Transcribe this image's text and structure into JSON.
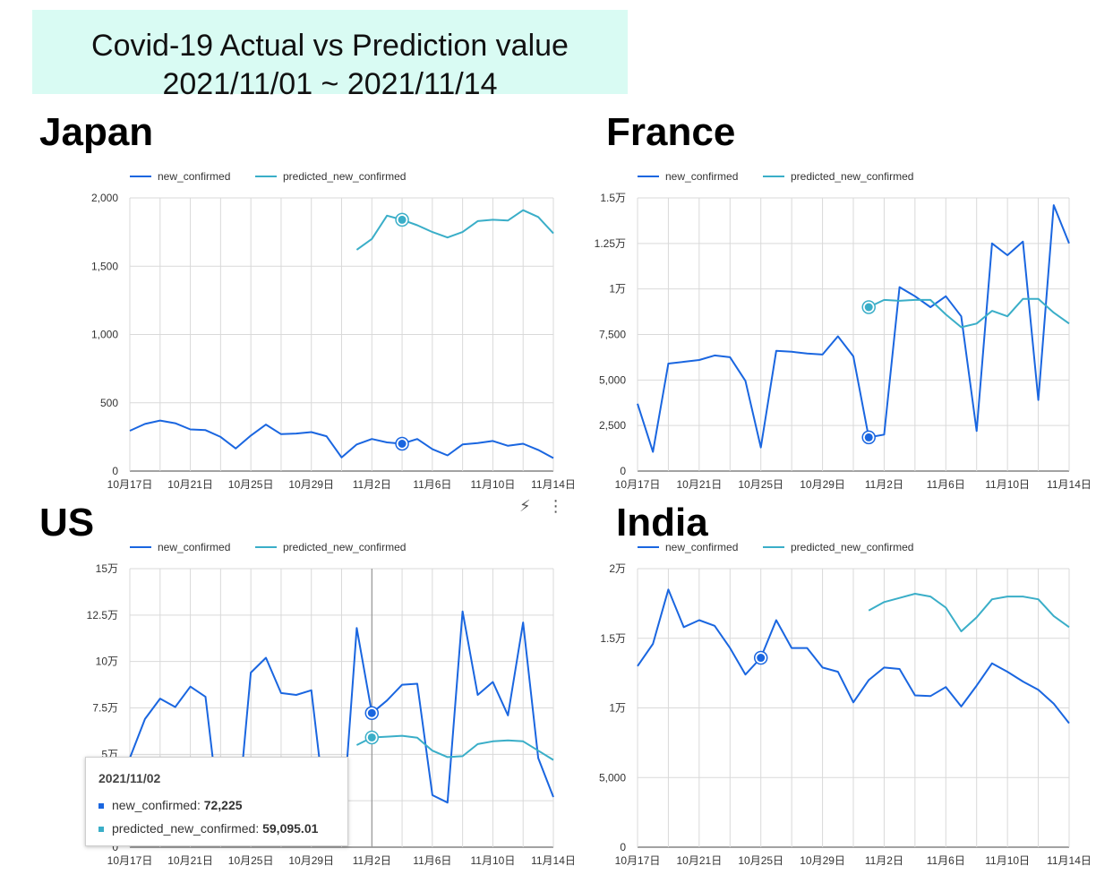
{
  "title": {
    "line1": "Covid-19 Actual vs Prediction value",
    "line2": "2021/11/01 ~ 2021/11/14"
  },
  "colors": {
    "actual": "#1a66e0",
    "predicted": "#3aaec8",
    "grid": "#d9d9d9"
  },
  "legend": {
    "actual": "new_confirmed",
    "predicted": "predicted_new_confirmed"
  },
  "x_ticks": [
    "10月17日",
    "10月21日",
    "10月25日",
    "10月29日",
    "11月2日",
    "11月6日",
    "11月10日",
    "11月14日"
  ],
  "tooltip": {
    "date": "2021/11/02",
    "actual_label": "new_confirmed:",
    "actual_value": "72,225",
    "predicted_label": "predicted_new_confirmed:",
    "predicted_value": "59,095.01"
  },
  "toolbar": {
    "icons": [
      "lightning-icon",
      "more-vert-icon"
    ]
  },
  "chart_data": [
    {
      "type": "line",
      "title": "Japan",
      "x": [
        "2021-10-17",
        "2021-10-18",
        "2021-10-19",
        "2021-10-20",
        "2021-10-21",
        "2021-10-22",
        "2021-10-23",
        "2021-10-24",
        "2021-10-25",
        "2021-10-26",
        "2021-10-27",
        "2021-10-28",
        "2021-10-29",
        "2021-10-30",
        "2021-10-31",
        "2021-11-01",
        "2021-11-02",
        "2021-11-03",
        "2021-11-04",
        "2021-11-05",
        "2021-11-06",
        "2021-11-07",
        "2021-11-08",
        "2021-11-09",
        "2021-11-10",
        "2021-11-11",
        "2021-11-12",
        "2021-11-13",
        "2021-11-14"
      ],
      "ylim": [
        0,
        2000
      ],
      "y_ticks": [
        "0",
        "500",
        "1,000",
        "1,500",
        "2,000"
      ],
      "series": [
        {
          "name": "new_confirmed",
          "values": [
            295,
            345,
            370,
            350,
            305,
            300,
            250,
            165,
            260,
            340,
            270,
            275,
            285,
            255,
            100,
            195,
            235,
            210,
            200,
            235,
            160,
            115,
            195,
            205,
            220,
            185,
            200,
            155,
            95
          ]
        },
        {
          "name": "predicted_new_confirmed",
          "values": [
            null,
            null,
            null,
            null,
            null,
            null,
            null,
            null,
            null,
            null,
            null,
            null,
            null,
            null,
            null,
            1620,
            1700,
            1870,
            1840,
            1800,
            1750,
            1710,
            1750,
            1830,
            1840,
            1835,
            1910,
            1860,
            1740
          ]
        }
      ],
      "highlight_index": 18
    },
    {
      "type": "line",
      "title": "France",
      "x": [
        "2021-10-17",
        "2021-10-18",
        "2021-10-19",
        "2021-10-20",
        "2021-10-21",
        "2021-10-22",
        "2021-10-23",
        "2021-10-24",
        "2021-10-25",
        "2021-10-26",
        "2021-10-27",
        "2021-10-28",
        "2021-10-29",
        "2021-10-30",
        "2021-10-31",
        "2021-11-01",
        "2021-11-02",
        "2021-11-03",
        "2021-11-04",
        "2021-11-05",
        "2021-11-06",
        "2021-11-07",
        "2021-11-08",
        "2021-11-09",
        "2021-11-10",
        "2021-11-11",
        "2021-11-12",
        "2021-11-13",
        "2021-11-14"
      ],
      "ylim": [
        0,
        15000
      ],
      "y_ticks": [
        "0",
        "2,500",
        "5,000",
        "7,500",
        "1万",
        "1.25万",
        "1.5万"
      ],
      "series": [
        {
          "name": "new_confirmed",
          "values": [
            3700,
            1050,
            5900,
            6000,
            6100,
            6350,
            6250,
            4950,
            1300,
            6600,
            6550,
            6450,
            6400,
            7400,
            6300,
            1850,
            2000,
            10100,
            9600,
            9000,
            9600,
            8500,
            2200,
            12500,
            11850,
            12600,
            3900,
            14600,
            12500
          ]
        },
        {
          "name": "predicted_new_confirmed",
          "values": [
            null,
            null,
            null,
            null,
            null,
            null,
            null,
            null,
            null,
            null,
            null,
            null,
            null,
            null,
            null,
            9000,
            9400,
            9350,
            9400,
            9400,
            8600,
            7900,
            8100,
            8800,
            8500,
            9450,
            9450,
            8700,
            8100
          ]
        }
      ],
      "highlight_index": 15
    },
    {
      "type": "line",
      "title": "US",
      "x": [
        "2021-10-17",
        "2021-10-18",
        "2021-10-19",
        "2021-10-20",
        "2021-10-21",
        "2021-10-22",
        "2021-10-23",
        "2021-10-24",
        "2021-10-25",
        "2021-10-26",
        "2021-10-27",
        "2021-10-28",
        "2021-10-29",
        "2021-10-30",
        "2021-10-31",
        "2021-11-01",
        "2021-11-02",
        "2021-11-03",
        "2021-11-04",
        "2021-11-05",
        "2021-11-06",
        "2021-11-07",
        "2021-11-08",
        "2021-11-09",
        "2021-11-10",
        "2021-11-11",
        "2021-11-12",
        "2021-11-13",
        "2021-11-14"
      ],
      "ylim": [
        0,
        150000
      ],
      "y_ticks": [
        "0",
        "2.5万",
        "5万",
        "7.5万",
        "10万",
        "12.5万",
        "15万"
      ],
      "series": [
        {
          "name": "new_confirmed",
          "values": [
            48000,
            69000,
            80000,
            75500,
            86500,
            81000,
            12000,
            5000,
            94000,
            102000,
            83000,
            82000,
            84500,
            15000,
            6000,
            118000,
            72225,
            79000,
            87500,
            88000,
            28000,
            24000,
            127000,
            82000,
            89000,
            71000,
            121000,
            48000,
            27000
          ]
        },
        {
          "name": "predicted_new_confirmed",
          "values": [
            null,
            null,
            null,
            null,
            null,
            null,
            null,
            null,
            null,
            null,
            null,
            null,
            null,
            null,
            null,
            55000,
            59095,
            59500,
            60000,
            59000,
            52000,
            48500,
            49000,
            55500,
            57000,
            57500,
            57000,
            52000,
            47000
          ]
        }
      ],
      "highlight_index": 16
    },
    {
      "type": "line",
      "title": "India",
      "x": [
        "2021-10-17",
        "2021-10-18",
        "2021-10-19",
        "2021-10-20",
        "2021-10-21",
        "2021-10-22",
        "2021-10-23",
        "2021-10-24",
        "2021-10-25",
        "2021-10-26",
        "2021-10-27",
        "2021-10-28",
        "2021-10-29",
        "2021-10-30",
        "2021-10-31",
        "2021-11-01",
        "2021-11-02",
        "2021-11-03",
        "2021-11-04",
        "2021-11-05",
        "2021-11-06",
        "2021-11-07",
        "2021-11-08",
        "2021-11-09",
        "2021-11-10",
        "2021-11-11",
        "2021-11-12",
        "2021-11-13",
        "2021-11-14"
      ],
      "ylim": [
        0,
        20000
      ],
      "y_ticks": [
        "0",
        "5,000",
        "1万",
        "1.5万",
        "2万"
      ],
      "series": [
        {
          "name": "new_confirmed",
          "values": [
            13000,
            14600,
            18500,
            15800,
            16300,
            15900,
            14300,
            12400,
            13600,
            16300,
            14300,
            14300,
            12900,
            12600,
            10400,
            12000,
            12900,
            12800,
            10900,
            10850,
            11500,
            10100,
            11600,
            13200,
            12600,
            11900,
            11300,
            10300,
            8900
          ]
        },
        {
          "name": "predicted_new_confirmed",
          "values": [
            null,
            null,
            null,
            null,
            null,
            null,
            null,
            null,
            null,
            null,
            null,
            null,
            null,
            null,
            null,
            17000,
            17600,
            17900,
            18200,
            18000,
            17200,
            15500,
            16500,
            17800,
            18000,
            18000,
            17800,
            16600,
            15800
          ]
        }
      ],
      "highlight_index": 8
    }
  ]
}
